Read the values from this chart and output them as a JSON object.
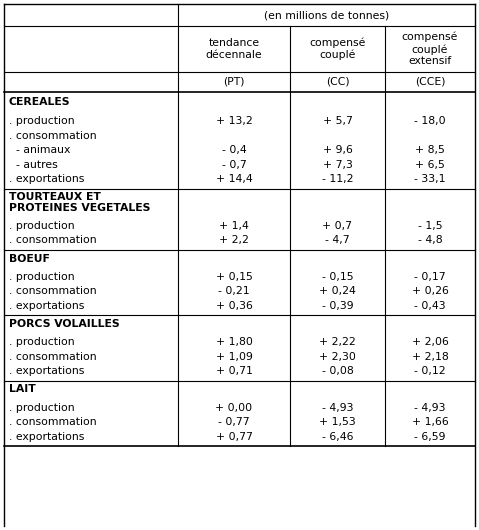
{
  "title_row": "(en millions de tonnes)",
  "headers": [
    "tendance\ndécennale",
    "compensé\ncouplé",
    "compensé\ncouplé\nextensif"
  ],
  "abbrevs": [
    "(PT)",
    "(CC)",
    "(CCE)"
  ],
  "sections": [
    {
      "title": "CEREALES",
      "rows": [
        [
          ". production",
          "+ 13,2",
          "+ 5,7",
          "- 18,0"
        ],
        [
          ". consommation",
          "",
          "",
          ""
        ],
        [
          "  - animaux",
          "- 0,4",
          "+ 9,6",
          "+ 8,5"
        ],
        [
          "  - autres",
          "- 0,7",
          "+ 7,3",
          "+ 6,5"
        ],
        [
          ". exportations",
          "+ 14,4",
          "- 11,2",
          "- 33,1"
        ]
      ]
    },
    {
      "title": "TOURTEAUX ET\nPROTEINES VEGETALES",
      "rows": [
        [
          ". production",
          "+ 1,4",
          "+ 0,7",
          "- 1,5"
        ],
        [
          ". consommation",
          "+ 2,2",
          "- 4,7",
          "- 4,8"
        ]
      ]
    },
    {
      "title": "BOEUF",
      "rows": [
        [
          ". production",
          "+ 0,15",
          "- 0,15",
          "- 0,17"
        ],
        [
          ". consommation",
          "- 0,21",
          "+ 0,24",
          "+ 0,26"
        ],
        [
          ". exportations",
          "+ 0,36",
          "- 0,39",
          "- 0,43"
        ]
      ]
    },
    {
      "title": "PORCS VOLAILLES",
      "rows": [
        [
          ". production",
          "+ 1,80",
          "+ 2,22",
          "+ 2,06"
        ],
        [
          ". consommation",
          "+ 1,09",
          "+ 2,30",
          "+ 2,18"
        ],
        [
          ". exportations",
          "+ 0,71",
          "- 0,08",
          "- 0,12"
        ]
      ]
    },
    {
      "title": "LAIT",
      "rows": [
        [
          ". production",
          "+ 0,00",
          "- 4,93",
          "- 4,93"
        ],
        [
          ". consommation",
          "- 0,77",
          "+ 1,53",
          "+ 1,66"
        ],
        [
          ". exportations",
          "+ 0,77",
          "- 6,46",
          "- 6,59"
        ]
      ]
    }
  ],
  "bg_color": "#ffffff",
  "text_color": "#000000",
  "line_color": "#000000",
  "font_size": 7.8,
  "bold_font_size": 7.8
}
